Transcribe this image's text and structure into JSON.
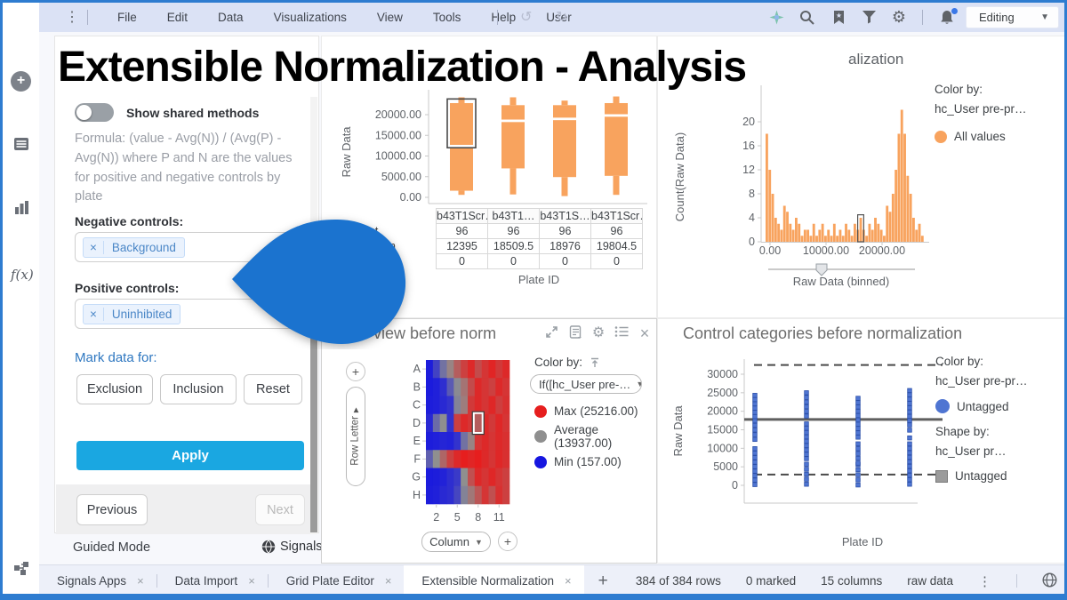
{
  "window": {
    "menu_items": [
      "File",
      "Edit",
      "Data",
      "Visualizations",
      "View",
      "Tools",
      "Help",
      "User"
    ],
    "editing_label": "Editing",
    "accent_blue": "#1b73cf"
  },
  "overlay": {
    "title": "Extensible Normalization - Analysis",
    "clipped_panel_title": "alization",
    "balloon_color": "#1b73cf"
  },
  "panel": {
    "toggle_label": "Show shared methods",
    "formula_text": "Formula: (value - Avg(N)) / (Avg(P) - Avg(N)) where P and N are the values for positive and negative controls by plate",
    "negative_controls_label": "Negative controls:",
    "negative_chip": "Background",
    "positive_controls_label": "Positive controls:",
    "positive_chip": "Uninhibited",
    "mark_data_label": "Mark data for:",
    "mark_buttons": [
      "Exclusion",
      "Inclusion",
      "Reset"
    ],
    "apply_label": "Apply",
    "previous_label": "Previous",
    "next_label": "Next",
    "guided_mode_label": "Guided Mode",
    "signals_label": "Signals"
  },
  "tabs": {
    "items": [
      {
        "label": "Signals Apps",
        "active": false
      },
      {
        "label": "Data Import",
        "active": false
      },
      {
        "label": "Grid Plate Editor",
        "active": false
      },
      {
        "label": "Extensible Normalization",
        "active": true
      }
    ],
    "add_label": "+"
  },
  "status_bar": {
    "items": [
      "384 of 384 rows",
      "0 marked",
      "15 columns",
      "raw data"
    ]
  },
  "chart_data": [
    {
      "id": "boxplot",
      "type": "boxplot",
      "ylabel": "Raw Data",
      "xlabel": "Plate ID",
      "y_ticks": [
        0,
        5000,
        10000,
        15000,
        20000
      ],
      "y_tick_labels": [
        "0.00",
        "5000.00",
        "10000.00",
        "15000.00",
        "20000.00"
      ],
      "ylim": [
        0,
        25500
      ],
      "color": "#f8a35e",
      "categories": [
        "b43T1Scr…",
        "b43T1…",
        "b43T1S…",
        "b43T1Scr…"
      ],
      "series": [
        {
          "whisker_low": 600,
          "q1": 1600,
          "median": 12395,
          "q3": 22800,
          "whisker_high": 24200
        },
        {
          "whisker_low": 700,
          "q1": 7000,
          "median": 18509.5,
          "q3": 22300,
          "whisker_high": 24200
        },
        {
          "whisker_low": 300,
          "q1": 4900,
          "median": 18976,
          "q3": 22300,
          "whisker_high": 23400
        },
        {
          "whisker_low": 600,
          "q1": 5200,
          "median": 19804.5,
          "q3": 22800,
          "whisker_high": 24400
        }
      ],
      "selection": {
        "plate_index": 0,
        "value_range": [
          12000,
          23800
        ]
      },
      "stats_table": {
        "row_label_fragments": [
          "unt",
          "n",
          ""
        ],
        "rows": [
          [
            "96",
            "96",
            "96",
            "96"
          ],
          [
            "12395",
            "18509.5",
            "18976",
            "19804.5"
          ],
          [
            "0",
            "0",
            "0",
            "0"
          ]
        ]
      }
    },
    {
      "id": "histogram",
      "type": "bar",
      "ylabel": "Count(Raw Data)",
      "xlabel": "Raw Data (binned)",
      "y_ticks": [
        0,
        4,
        8,
        12,
        16,
        20
      ],
      "x_tick_labels": [
        "0.00",
        "10000.00",
        "20000.00"
      ],
      "color": "#f8a35e",
      "values": [
        18,
        12,
        8,
        4,
        3,
        2,
        6,
        5,
        3,
        2,
        4,
        3,
        1,
        2,
        2,
        1,
        3,
        1,
        2,
        3,
        1,
        2,
        1,
        3,
        1,
        2,
        1,
        3,
        2,
        1,
        3,
        2,
        4,
        2,
        1,
        3,
        2,
        4,
        3,
        2,
        1,
        6,
        5,
        8,
        12,
        18,
        22,
        18,
        11,
        8,
        4,
        2,
        3,
        1
      ],
      "marked_bar_index": 32,
      "legend": {
        "color_by_label": "Color by:",
        "color_by_column": "hc_User pre-pr…",
        "items": [
          {
            "label": "All values",
            "color": "#f8a35e"
          }
        ]
      }
    },
    {
      "id": "heatmap",
      "type": "heatmap",
      "title_fragment": "te view before norm",
      "rows": [
        "A",
        "B",
        "C",
        "D",
        "E",
        "F",
        "G",
        "H"
      ],
      "col_ticks": [
        "2",
        "5",
        "8",
        "11"
      ],
      "row_axis_label": "Row Letter",
      "col_axis_label": "Column",
      "color_scale": {
        "min": 157,
        "mid": 13937,
        "max": 25216,
        "min_color": "#1616e0",
        "mid_color": "#8f8f8f",
        "max_color": "#e61e1e"
      },
      "values": [
        [
          0.03,
          0.18,
          0.38,
          0.55,
          0.72,
          0.85,
          0.95,
          0.8,
          0.9,
          0.97,
          0.88,
          0.95
        ],
        [
          0.02,
          0.04,
          0.1,
          0.28,
          0.48,
          0.62,
          0.8,
          0.95,
          0.9,
          0.85,
          0.95,
          0.9
        ],
        [
          0.03,
          0.04,
          0.08,
          0.12,
          0.45,
          0.58,
          0.88,
          0.95,
          0.9,
          0.96,
          0.86,
          0.92
        ],
        [
          0.08,
          0.35,
          0.5,
          0.12,
          0.85,
          0.95,
          0.9,
          0.72,
          0.95,
          0.88,
          0.96,
          0.9
        ],
        [
          0.03,
          0.04,
          0.06,
          0.05,
          0.12,
          0.38,
          0.55,
          0.9,
          0.95,
          0.9,
          0.95,
          0.92
        ],
        [
          0.3,
          0.5,
          0.68,
          0.85,
          0.95,
          1.0,
          0.97,
          1.0,
          0.95,
          0.9,
          0.96,
          0.92
        ],
        [
          0.02,
          0.03,
          0.05,
          0.1,
          0.15,
          0.5,
          0.78,
          0.95,
          0.9,
          0.96,
          0.9,
          0.85
        ],
        [
          0.03,
          0.04,
          0.08,
          0.1,
          0.2,
          0.45,
          0.6,
          0.75,
          0.9,
          0.78,
          0.92,
          0.85
        ]
      ],
      "selected_cell": {
        "row": "D",
        "column": 8
      },
      "legend": {
        "color_by_label": "Color by:",
        "dropdown_value": "If([hc_User pre-…",
        "items": [
          {
            "label": "Max (25216.00)",
            "color": "#e61e1e"
          },
          {
            "label": "Average (13937.00)",
            "color": "#8f8f8f"
          },
          {
            "label": "Min (157.00)",
            "color": "#1616e0"
          }
        ]
      }
    },
    {
      "id": "scatter",
      "type": "scatter",
      "title": "Control categories before normalization",
      "ylabel": "Raw Data",
      "xlabel": "Plate ID",
      "y_ticks": [
        0,
        5000,
        10000,
        15000,
        20000,
        25000,
        30000
      ],
      "marker": "square",
      "marker_color": "#4f75d2",
      "strips": [
        {
          "ranges": [
            [
              200,
              9900
            ],
            [
              12400,
              16200
            ],
            [
              17400,
              24300
            ]
          ]
        },
        {
          "ranges": [
            [
              300,
              5700
            ],
            [
              7200,
              16600
            ],
            [
              18700,
              25000
            ]
          ]
        },
        {
          "ranges": [
            [
              100,
              5600
            ],
            [
              6000,
              11200
            ],
            [
              13000,
              23500
            ]
          ]
        },
        {
          "ranges": [
            [
              300,
              11200
            ],
            [
              12800,
              14900
            ],
            [
              16300,
              25600
            ]
          ]
        }
      ],
      "reference_lines": [
        {
          "style": "dashed",
          "value": 32500
        },
        {
          "style": "solid",
          "value": 17800
        },
        {
          "style": "dashed",
          "value": 2900
        }
      ],
      "legend": {
        "color_by_label": "Color by:",
        "color_by_column": "hc_User pre-pr…",
        "color_items": [
          {
            "label": "Untagged",
            "color": "#4f75d2"
          }
        ],
        "shape_by_label": "Shape by:",
        "shape_by_column": "hc_User pr…",
        "shape_items": [
          {
            "label": "Untagged",
            "color": "#9b9b9b"
          }
        ]
      }
    }
  ]
}
